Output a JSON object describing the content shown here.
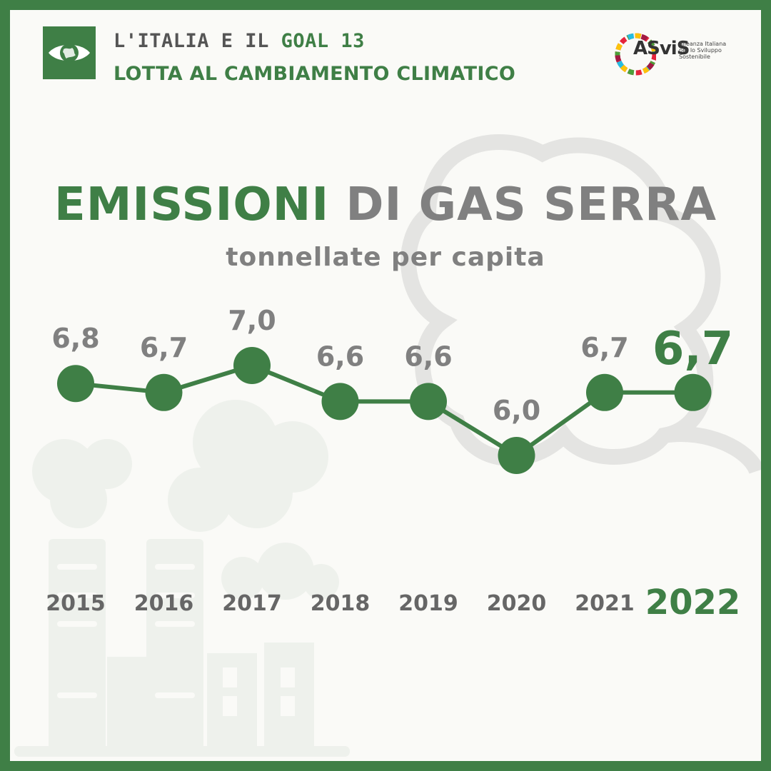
{
  "header": {
    "line1_prefix": "L'ITALIA E IL ",
    "line1_goal": "GOAL 13",
    "line2": "LOTTA AL CAMBIAMENTO CLIMATICO",
    "badge_icon": "eye-globe-icon"
  },
  "logo": {
    "name": "ASviS",
    "subtitle": "Alleanza Italiana per lo Sviluppo Sostenibile"
  },
  "title": {
    "part1": "EMISSIONI",
    "part2": " DI GAS SERRA"
  },
  "subtitle": "tonnellate per capita",
  "colors": {
    "accent": "#3f7f46",
    "gray": "#808080",
    "background": "#fafaf7"
  },
  "chart_data": {
    "type": "line",
    "title": "EMISSIONI DI GAS SERRA",
    "ylabel": "tonnellate per capita",
    "categories": [
      "2015",
      "2016",
      "2017",
      "2018",
      "2019",
      "2020",
      "2021",
      "2022"
    ],
    "values": [
      6.8,
      6.7,
      7.0,
      6.6,
      6.6,
      6.0,
      6.7,
      6.7
    ],
    "labels": [
      "6,8",
      "6,7",
      "7,0",
      "6,6",
      "6,6",
      "6,0",
      "6,7",
      "6,7"
    ],
    "highlight_index": 7,
    "ylim": [
      6.0,
      7.0
    ]
  }
}
